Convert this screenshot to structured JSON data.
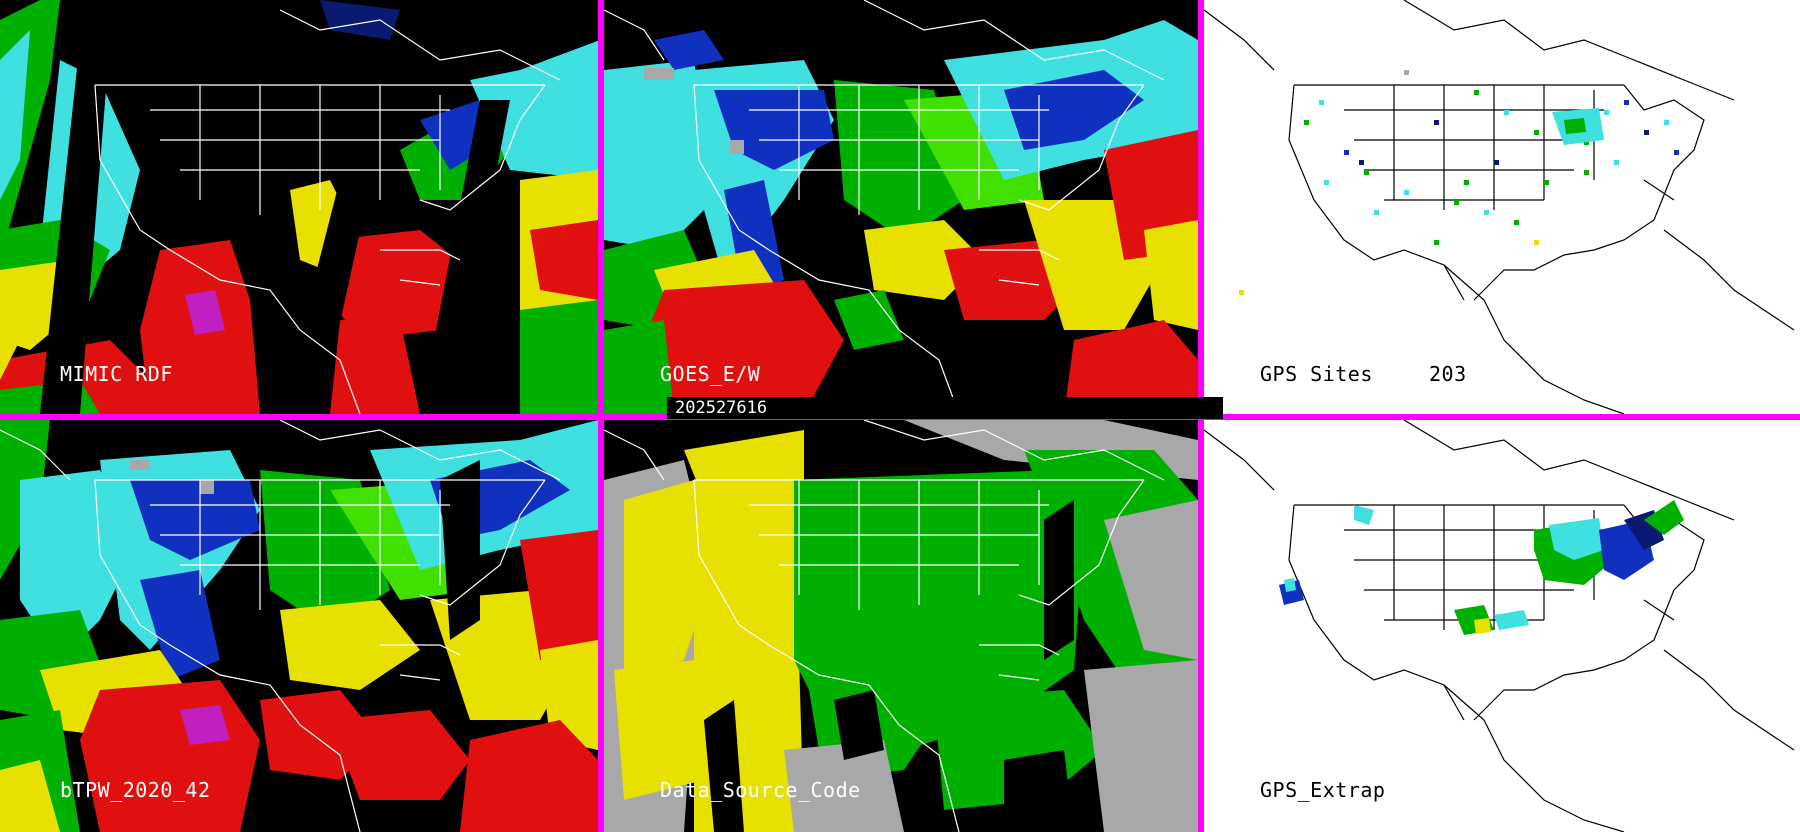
{
  "timestamp": "202527616",
  "panels": [
    {
      "id": "mimic-rdf",
      "label": "MIMIC RDF"
    },
    {
      "id": "goes-ew",
      "label": "GOES_E/W"
    },
    {
      "id": "gps-sites",
      "label": "GPS Sites",
      "count": "203"
    },
    {
      "id": "btpw",
      "label": "bTPW_2020_42"
    },
    {
      "id": "data-source-code",
      "label": "Data_Source_Code"
    },
    {
      "id": "gps-extrap",
      "label": "GPS_Extrap"
    }
  ],
  "colors": {
    "divider": "#ff00ff",
    "red": "#e01010",
    "yellow": "#e8e000",
    "green": "#00c000",
    "lime": "#40e020",
    "cyan": "#40e0e0",
    "blue": "#1030c0",
    "navy": "#0a1a70",
    "gray": "#a8a8a8",
    "magenta": "#c020c0"
  }
}
